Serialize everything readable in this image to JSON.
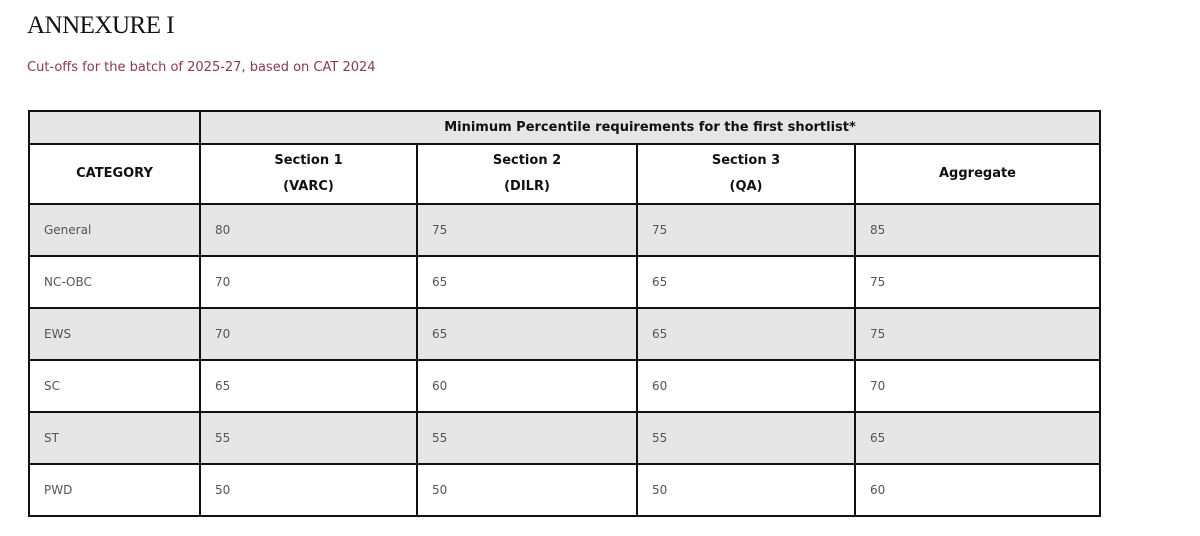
{
  "title": "ANNEXURE I",
  "subtitle": "Cut-offs for the batch of 2025-27, based on CAT 2024",
  "table": {
    "group_header": "Minimum Percentile requirements for the first shortlist*",
    "category_header": "CATEGORY",
    "columns": [
      {
        "line1": "Section 1",
        "line2": "(VARC)"
      },
      {
        "line1": "Section 2",
        "line2": "(DILR)"
      },
      {
        "line1": "Section 3",
        "line2": "(QA)"
      },
      {
        "line1": "Aggregate",
        "line2": ""
      }
    ],
    "rows": [
      {
        "category": "General",
        "values": [
          "80",
          "75",
          "75",
          "85"
        ]
      },
      {
        "category": "NC-OBC",
        "values": [
          "70",
          "65",
          "65",
          "75"
        ]
      },
      {
        "category": "EWS",
        "values": [
          "70",
          "65",
          "65",
          "75"
        ]
      },
      {
        "category": "SC",
        "values": [
          "65",
          "60",
          "60",
          "70"
        ]
      },
      {
        "category": "ST",
        "values": [
          "55",
          "55",
          "55",
          "65"
        ]
      },
      {
        "category": "PWD",
        "values": [
          "50",
          "50",
          "50",
          "60"
        ]
      }
    ]
  },
  "colors": {
    "subtitle": "#8b3a4a",
    "shade": "#e6e6e6"
  }
}
